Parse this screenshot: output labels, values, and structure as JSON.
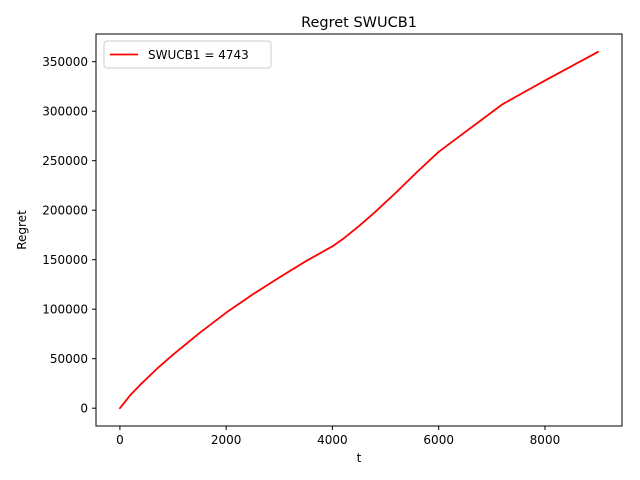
{
  "chart_data": {
    "type": "line",
    "title": "Regret SWUCB1",
    "xlabel": "t",
    "ylabel": "Regret",
    "xlim": [
      -450,
      9450
    ],
    "ylim": [
      -18000,
      378000
    ],
    "x_ticks": [
      0,
      2000,
      4000,
      6000,
      8000
    ],
    "x_tick_labels": [
      "0",
      "2000",
      "4000",
      "6000",
      "8000"
    ],
    "y_ticks": [
      0,
      50000,
      100000,
      150000,
      200000,
      250000,
      300000,
      350000
    ],
    "y_tick_labels": [
      "0",
      "50000",
      "100000",
      "150000",
      "200000",
      "250000",
      "300000",
      "350000"
    ],
    "grid": false,
    "legend_position": "top-left",
    "series": [
      {
        "name": "SWUCB1 = 4743",
        "color": "#ff0000",
        "x": [
          0,
          200,
          400,
          700,
          1000,
          1500,
          2000,
          2500,
          3000,
          3500,
          4000,
          4200,
          4500,
          4800,
          5200,
          5600,
          6000,
          6400,
          6800,
          7200,
          7600,
          8000,
          8500,
          9000
        ],
        "y": [
          0,
          13500,
          24500,
          40000,
          54000,
          76000,
          96500,
          115000,
          132000,
          148500,
          163500,
          171000,
          184000,
          198000,
          218000,
          239000,
          259000,
          275000,
          291000,
          307000,
          319000,
          331000,
          345500,
          360000
        ]
      }
    ]
  }
}
